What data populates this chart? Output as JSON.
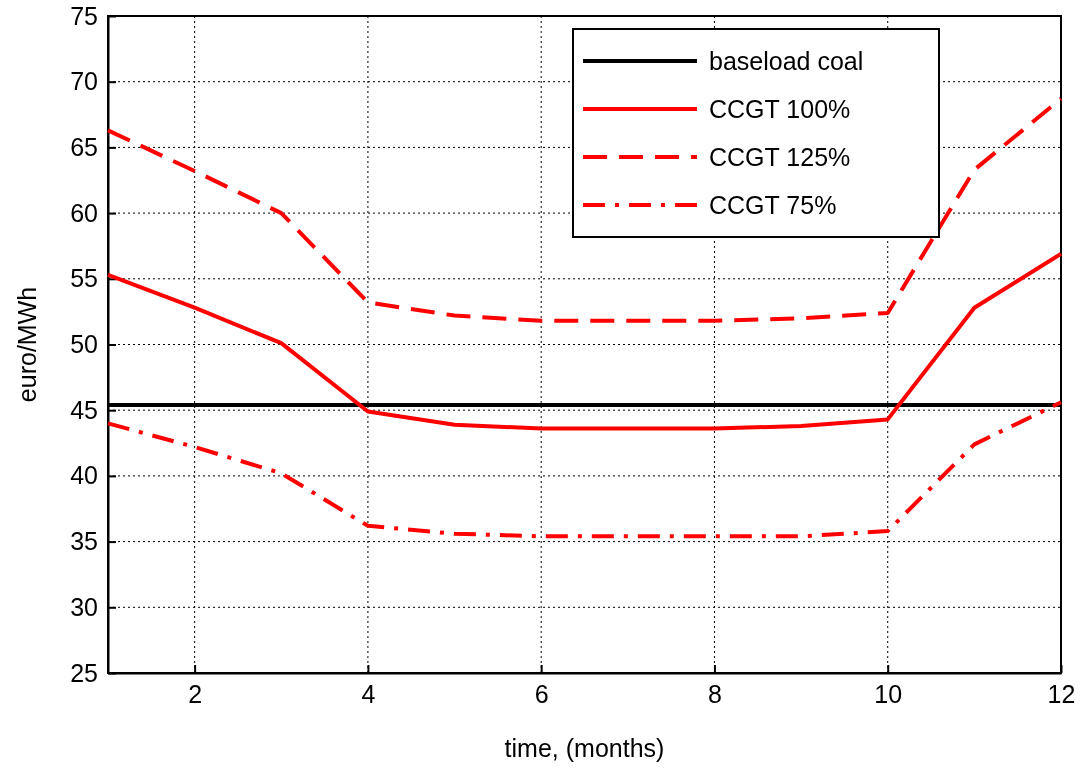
{
  "chart_data": {
    "type": "line",
    "xlabel": "time, (months)",
    "ylabel": "euro/MWh",
    "x": [
      1,
      2,
      3,
      4,
      5,
      6,
      7,
      8,
      9,
      10,
      11,
      12
    ],
    "xlim": [
      1,
      12
    ],
    "xticks": [
      2,
      4,
      6,
      8,
      10,
      12
    ],
    "ylim": [
      25,
      75
    ],
    "yticks": [
      25,
      30,
      35,
      40,
      45,
      50,
      55,
      60,
      65,
      70,
      75
    ],
    "grid": true,
    "legend": "top right",
    "marker": "none",
    "series": [
      {
        "name": "baseload coal",
        "color": "#000000",
        "line_style": "solid",
        "values": [
          45.4,
          45.4,
          45.4,
          45.4,
          45.4,
          45.4,
          45.4,
          45.4,
          45.4,
          45.4,
          45.4,
          45.4
        ]
      },
      {
        "name": "CCGT 100%",
        "color": "#ff0000",
        "line_style": "solid",
        "values": [
          55.3,
          52.8,
          50.1,
          44.9,
          43.9,
          43.6,
          43.6,
          43.6,
          43.8,
          44.3,
          52.8,
          56.9
        ]
      },
      {
        "name": "CCGT 125%",
        "color": "#ff0000",
        "line_style": "dashed",
        "values": [
          66.3,
          63.2,
          60,
          53.2,
          52.2,
          51.8,
          51.8,
          51.8,
          52,
          52.4,
          63.3,
          68.7
        ]
      },
      {
        "name": "CCGT 75%",
        "color": "#ff0000",
        "line_style": "dashdot",
        "values": [
          44,
          42.2,
          40.2,
          36.2,
          35.6,
          35.4,
          35.4,
          35.4,
          35.4,
          35.8,
          42.4,
          45.6
        ]
      }
    ]
  }
}
